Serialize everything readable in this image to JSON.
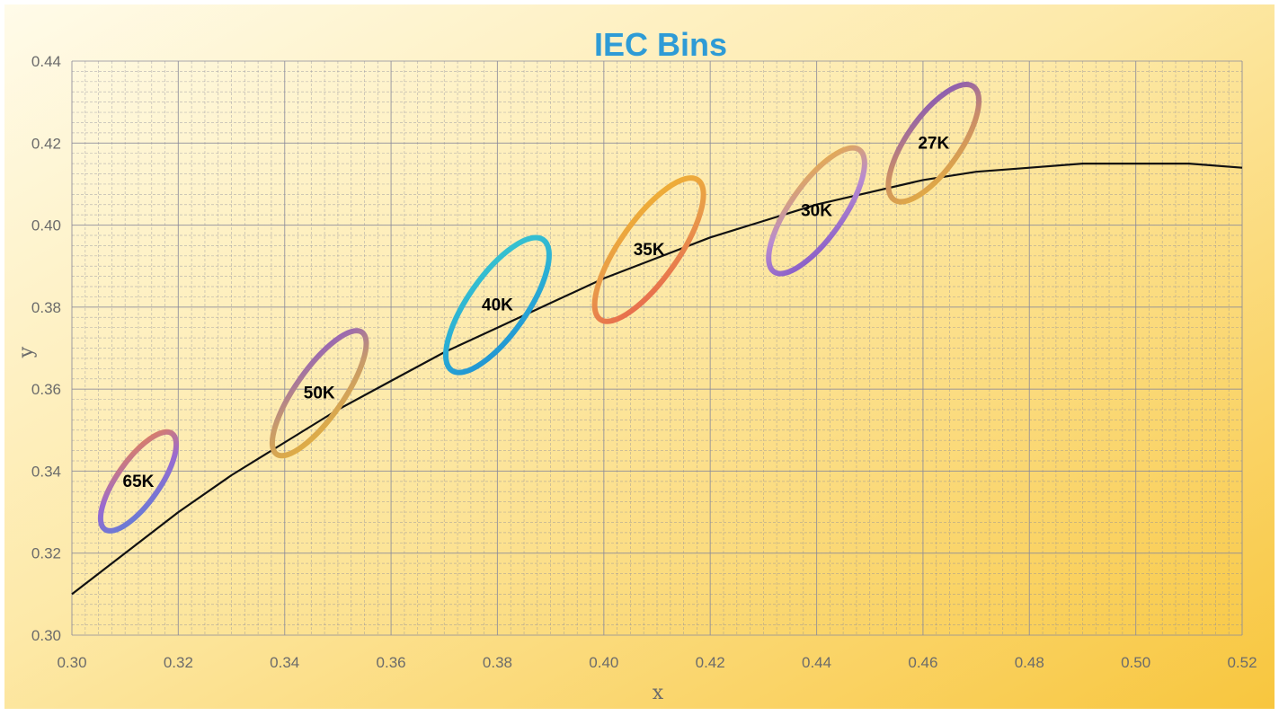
{
  "chart_data": {
    "type": "scatter",
    "title": "IEC Bins",
    "xlabel": "x",
    "ylabel": "y",
    "xlim": [
      0.3,
      0.52
    ],
    "ylim": [
      0.3,
      0.44
    ],
    "x_ticks": [
      "0.30",
      "0.32",
      "0.34",
      "0.36",
      "0.38",
      "0.40",
      "0.42",
      "0.44",
      "0.46",
      "0.48",
      "0.50",
      "0.52"
    ],
    "y_ticks": [
      "0.30",
      "0.32",
      "0.34",
      "0.36",
      "0.38",
      "0.40",
      "0.42",
      "0.44"
    ],
    "grid": true,
    "curve": {
      "x": [
        0.3,
        0.31,
        0.32,
        0.33,
        0.34,
        0.35,
        0.36,
        0.37,
        0.38,
        0.39,
        0.4,
        0.41,
        0.42,
        0.43,
        0.44,
        0.45,
        0.46,
        0.47,
        0.48,
        0.49,
        0.5,
        0.51,
        0.52
      ],
      "y": [
        0.31,
        0.32,
        0.33,
        0.339,
        0.347,
        0.355,
        0.362,
        0.369,
        0.375,
        0.381,
        0.387,
        0.392,
        0.397,
        0.401,
        0.405,
        0.408,
        0.411,
        0.413,
        0.414,
        0.415,
        0.415,
        0.415,
        0.414
      ]
    },
    "bins": [
      {
        "label": "65K",
        "cx": 0.3125,
        "cy": 0.3375,
        "a": 0.011,
        "b": 0.004,
        "colors": [
          "#5b7fd6",
          "#9a6ad0",
          "#e9834e"
        ]
      },
      {
        "label": "50K",
        "cx": 0.3465,
        "cy": 0.359,
        "a": 0.014,
        "b": 0.0045,
        "colors": [
          "#e6b23a",
          "#c79a6a",
          "#8a57c9"
        ]
      },
      {
        "label": "40K",
        "cx": 0.38,
        "cy": 0.3805,
        "a": 0.015,
        "b": 0.0055,
        "colors": [
          "#1f8fd3",
          "#2bb0d4",
          "#39c6cf"
        ]
      },
      {
        "label": "35K",
        "cx": 0.4085,
        "cy": 0.394,
        "a": 0.016,
        "b": 0.0055,
        "colors": [
          "#e8604e",
          "#e89a4a",
          "#f0b330"
        ]
      },
      {
        "label": "30K",
        "cx": 0.44,
        "cy": 0.4035,
        "a": 0.014,
        "b": 0.005,
        "colors": [
          "#7c52c6",
          "#b88bd0",
          "#f0b330"
        ]
      },
      {
        "label": "27K",
        "cx": 0.462,
        "cy": 0.42,
        "a": 0.013,
        "b": 0.005,
        "colors": [
          "#e8b23a",
          "#c88b6a",
          "#7a4fc8"
        ]
      }
    ],
    "colors": {
      "title": "#2e9bd6",
      "curve": "#111111",
      "grid": "#8a8a9a",
      "background_top": "#fffbe6",
      "background_bottom": "#f9c94a"
    }
  }
}
